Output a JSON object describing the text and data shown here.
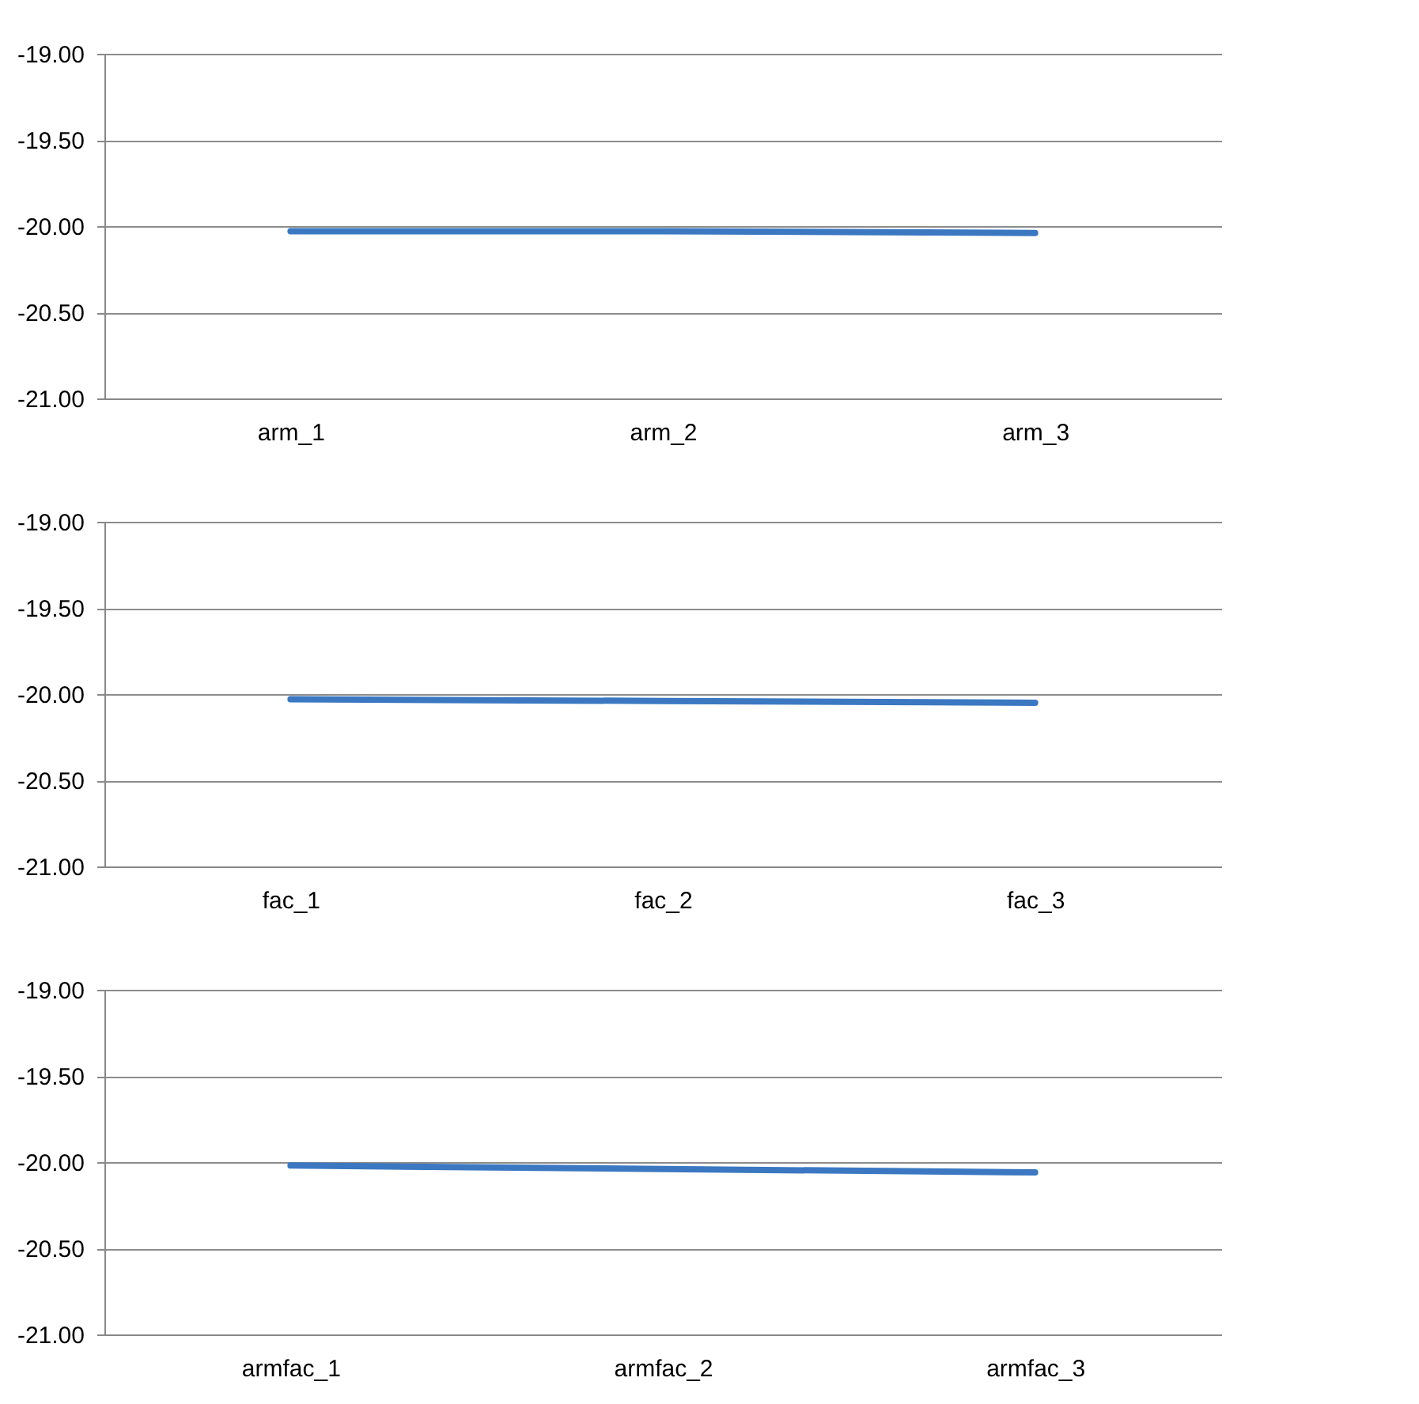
{
  "chart_data": [
    {
      "type": "line",
      "categories": [
        "arm_1",
        "arm_2",
        "arm_3"
      ],
      "series": [
        {
          "color": "#3b78c1",
          "values": [
            -20.03,
            -20.03,
            -20.04
          ]
        }
      ],
      "ylim": [
        -21,
        -19
      ],
      "yticks": [
        {
          "value": -21,
          "label": "-21.00"
        },
        {
          "value": -20.5,
          "label": "-20.50"
        },
        {
          "value": -20,
          "label": "-20.00"
        },
        {
          "value": -19.5,
          "label": "-19.50"
        },
        {
          "value": -19,
          "label": "-19.00"
        }
      ],
      "grid": "y",
      "marker": "none",
      "line_style": "solid"
    },
    {
      "type": "line",
      "categories": [
        "fac_1",
        "fac_2",
        "fac_3"
      ],
      "series": [
        {
          "color": "#3b78c1",
          "values": [
            -20.03,
            -20.04,
            -20.05
          ]
        }
      ],
      "ylim": [
        -21,
        -19
      ],
      "yticks": [
        {
          "value": -21,
          "label": "-21.00"
        },
        {
          "value": -20.5,
          "label": "-20.50"
        },
        {
          "value": -20,
          "label": "-20.00"
        },
        {
          "value": -19.5,
          "label": "-19.50"
        },
        {
          "value": -19,
          "label": "-19.00"
        }
      ],
      "grid": "y",
      "marker": "none",
      "line_style": "solid"
    },
    {
      "type": "line",
      "categories": [
        "armfac_1",
        "armfac_2",
        "armfac_3"
      ],
      "series": [
        {
          "color": "#3b78c1",
          "values": [
            -20.02,
            -20.04,
            -20.06
          ]
        }
      ],
      "ylim": [
        -21,
        -19
      ],
      "yticks": [
        {
          "value": -21,
          "label": "-21.00"
        },
        {
          "value": -20.5,
          "label": "-20.50"
        },
        {
          "value": -20,
          "label": "-20.00"
        },
        {
          "value": -19.5,
          "label": "-19.50"
        },
        {
          "value": -19,
          "label": "-19.00"
        }
      ],
      "grid": "y",
      "marker": "none",
      "line_style": "solid"
    }
  ]
}
